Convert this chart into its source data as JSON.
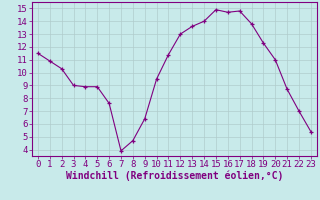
{
  "x": [
    0,
    1,
    2,
    3,
    4,
    5,
    6,
    7,
    8,
    9,
    10,
    11,
    12,
    13,
    14,
    15,
    16,
    17,
    18,
    19,
    20,
    21,
    22,
    23
  ],
  "y": [
    11.5,
    10.9,
    10.3,
    9.0,
    8.9,
    8.9,
    7.6,
    3.9,
    4.7,
    6.4,
    9.5,
    11.4,
    13.0,
    13.6,
    14.0,
    14.9,
    14.7,
    14.8,
    13.8,
    12.3,
    11.0,
    8.7,
    7.0,
    5.4
  ],
  "line_color": "#800080",
  "marker": "+",
  "bg_color": "#c8eaea",
  "grid_color": "#b0cccc",
  "axis_color": "#800080",
  "spine_color": "#800080",
  "xlabel": "Windchill (Refroidissement éolien,°C)",
  "xlim": [
    -0.5,
    23.5
  ],
  "ylim": [
    3.5,
    15.5
  ],
  "yticks": [
    4,
    5,
    6,
    7,
    8,
    9,
    10,
    11,
    12,
    13,
    14,
    15
  ],
  "xticks": [
    0,
    1,
    2,
    3,
    4,
    5,
    6,
    7,
    8,
    9,
    10,
    11,
    12,
    13,
    14,
    15,
    16,
    17,
    18,
    19,
    20,
    21,
    22,
    23
  ],
  "tick_font_size": 6.5,
  "label_font_size": 7.0
}
